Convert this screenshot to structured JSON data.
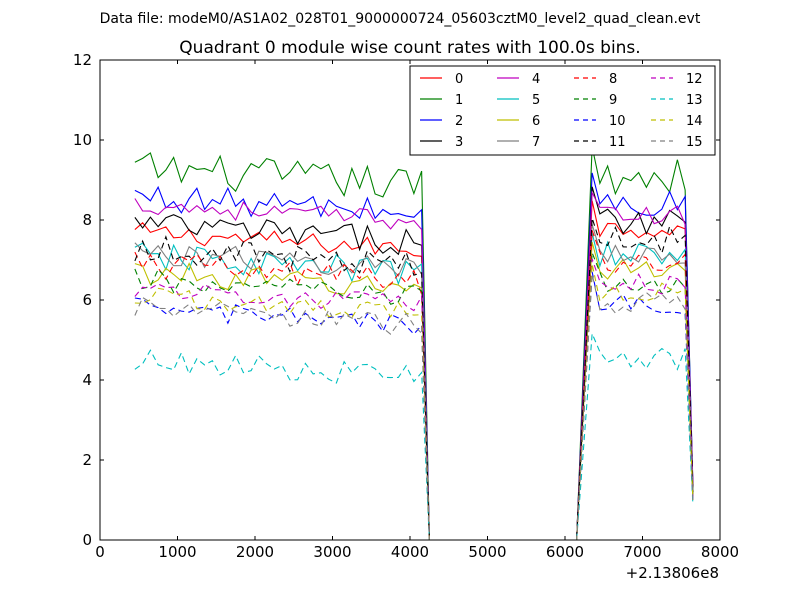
{
  "figure": {
    "suptitle": "Data file: modeM0/AS1A02_028T01_9000000724_05603cztM0_level2_quad_clean.evt"
  },
  "chart_data": {
    "type": "line",
    "title": "Quadrant 0 module wise count rates with 100.0s bins.",
    "xlabel": "",
    "ylabel": "",
    "x_offset_label": "+2.13806e8",
    "xlim": [
      0,
      8000
    ],
    "ylim": [
      0,
      12
    ],
    "xticks": [
      0,
      1000,
      2000,
      3000,
      4000,
      5000,
      6000,
      7000,
      8000
    ],
    "yticks": [
      0,
      2,
      4,
      6,
      8,
      10,
      12
    ],
    "grid": false,
    "legend": {
      "placement": "top-right",
      "columns": 4
    },
    "x_segments": [
      {
        "start": 450,
        "end": 4150,
        "step": 100
      },
      {
        "start": 6350,
        "end": 7650,
        "step": 100
      }
    ],
    "gap_x": [
      4250,
      6150
    ],
    "gap_value": 0,
    "series": [
      {
        "name": "0",
        "color": "#ff0000",
        "dash": "solid",
        "base1": 7.7,
        "base2": 7.8,
        "amp": 0.25,
        "final": 1.2
      },
      {
        "name": "1",
        "color": "#008000",
        "dash": "solid",
        "base1": 9.3,
        "base2": 9.1,
        "amp": 0.45,
        "final": 1.3
      },
      {
        "name": "2",
        "color": "#0000ff",
        "dash": "solid",
        "base1": 8.6,
        "base2": 8.4,
        "amp": 0.35,
        "final": 1.4
      },
      {
        "name": "3",
        "color": "#000000",
        "dash": "solid",
        "base1": 7.9,
        "base2": 8.0,
        "amp": 0.35,
        "final": 1.3
      },
      {
        "name": "4",
        "color": "#bf00bf",
        "dash": "solid",
        "base1": 8.4,
        "base2": 8.1,
        "amp": 0.25,
        "final": 1.4
      },
      {
        "name": "5",
        "color": "#00bfbf",
        "dash": "solid",
        "base1": 7.1,
        "base2": 7.1,
        "amp": 0.35,
        "final": 1.0
      },
      {
        "name": "6",
        "color": "#bfbf00",
        "dash": "solid",
        "base1": 6.7,
        "base2": 6.8,
        "amp": 0.3,
        "final": 1.1
      },
      {
        "name": "7",
        "color": "#808080",
        "dash": "solid",
        "base1": 7.2,
        "base2": 7.2,
        "amp": 0.3,
        "final": 1.2
      },
      {
        "name": "8",
        "color": "#ff0000",
        "dash": "dashed",
        "base1": 6.9,
        "base2": 7.0,
        "amp": 0.35,
        "final": 1.1
      },
      {
        "name": "9",
        "color": "#008000",
        "dash": "dashed",
        "base1": 6.5,
        "base2": 6.4,
        "amp": 0.3,
        "final": 1.1
      },
      {
        "name": "10",
        "color": "#0000ff",
        "dash": "dashed",
        "base1": 5.8,
        "base2": 5.9,
        "amp": 0.25,
        "final": 1.0
      },
      {
        "name": "11",
        "color": "#000000",
        "dash": "dashed",
        "base1": 7.3,
        "base2": 7.5,
        "amp": 0.35,
        "final": 1.2
      },
      {
        "name": "12",
        "color": "#bf00bf",
        "dash": "dashed",
        "base1": 6.3,
        "base2": 6.4,
        "amp": 0.25,
        "final": 1.0
      },
      {
        "name": "13",
        "color": "#00bfbf",
        "dash": "dashed",
        "base1": 4.5,
        "base2": 4.5,
        "amp": 0.3,
        "final": 0.9
      },
      {
        "name": "14",
        "color": "#bfbf00",
        "dash": "dashed",
        "base1": 6.1,
        "base2": 6.2,
        "amp": 0.25,
        "final": 1.0
      },
      {
        "name": "15",
        "color": "#808080",
        "dash": "dashed",
        "base1": 5.8,
        "base2": 5.9,
        "amp": 0.3,
        "final": 1.0
      }
    ]
  }
}
